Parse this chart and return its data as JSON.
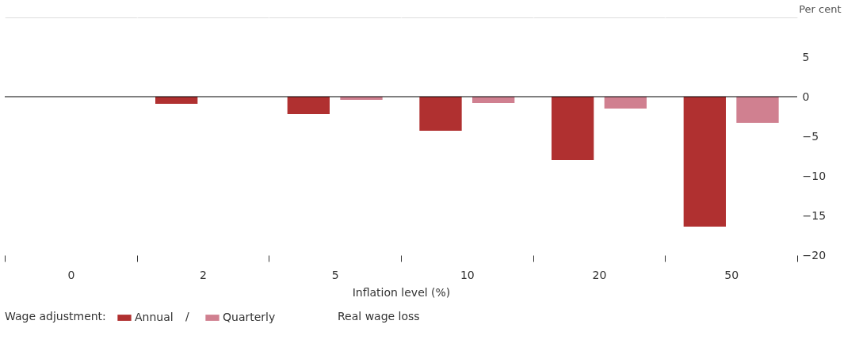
{
  "chart_data": {
    "type": "bar",
    "xlabel": "Inflation level (%)",
    "ylabel": "Per cent",
    "legend_title": "Wage adjustment:",
    "categories": [
      "0",
      "2",
      "5",
      "10",
      "20",
      "50"
    ],
    "series": [
      {
        "name": "Annual",
        "color": "#b03030",
        "values": [
          0,
          -0.9,
          -2.2,
          -4.3,
          -8.0,
          -16.4
        ]
      },
      {
        "name": "Quarterly",
        "color": "#d08090",
        "values": [
          0,
          null,
          -0.4,
          -0.8,
          -1.5,
          -3.3
        ]
      }
    ],
    "ylim": [
      -20,
      10
    ],
    "yticks": [
      -20,
      -15,
      -10,
      -5,
      0,
      5
    ],
    "grid": true,
    "legend": "bottom left",
    "annotations": [
      "/",
      "Real wage loss"
    ]
  }
}
